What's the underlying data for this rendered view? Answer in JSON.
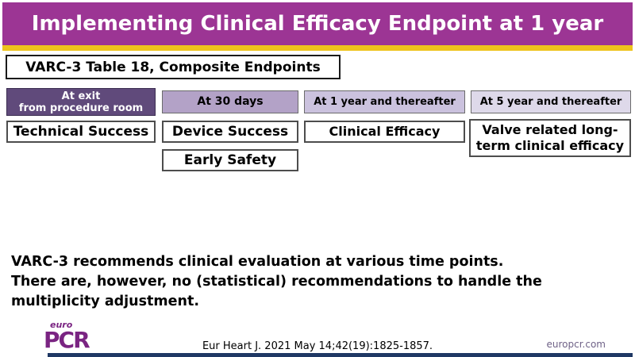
{
  "slide": {
    "title": "Implementing Clinical Efficacy Endpoint at 1 year",
    "subtitle_box": "VARC-3 Table 18, Composite Endpoints",
    "timeline": {
      "columns": [
        {
          "header": "At exit\nfrom procedure room",
          "boxes": [
            "Technical Success"
          ]
        },
        {
          "header": "At 30 days",
          "boxes": [
            "Device Success",
            "Early Safety"
          ]
        },
        {
          "header": "At 1 year and thereafter",
          "boxes": [
            "Clinical Efficacy"
          ]
        },
        {
          "header": "At 5 year and thereafter",
          "boxes": [
            "Valve related long-term clinical efficacy"
          ]
        }
      ]
    },
    "body_text": "VARC-3 recommends clinical evaluation at various time points.\nThere are, however, no (statistical) recommendations to handle the\nmultiplicity adjustment.",
    "footer": {
      "logo_top": "euro",
      "logo_main": "PCR",
      "citation": "Eur Heart J. 2021 May 14;42(19):1825-1857.",
      "website": "europcr.com"
    }
  },
  "colors": {
    "title_bar": "#9c3594",
    "gold_strip": "#eec41d",
    "header_col1": "#604a7b",
    "header_col2": "#b3a2c7",
    "header_col3": "#cbc2de",
    "header_col4": "#ded9ea",
    "logo_purple": "#7a2482",
    "bottom_bar": "#1f3864"
  }
}
